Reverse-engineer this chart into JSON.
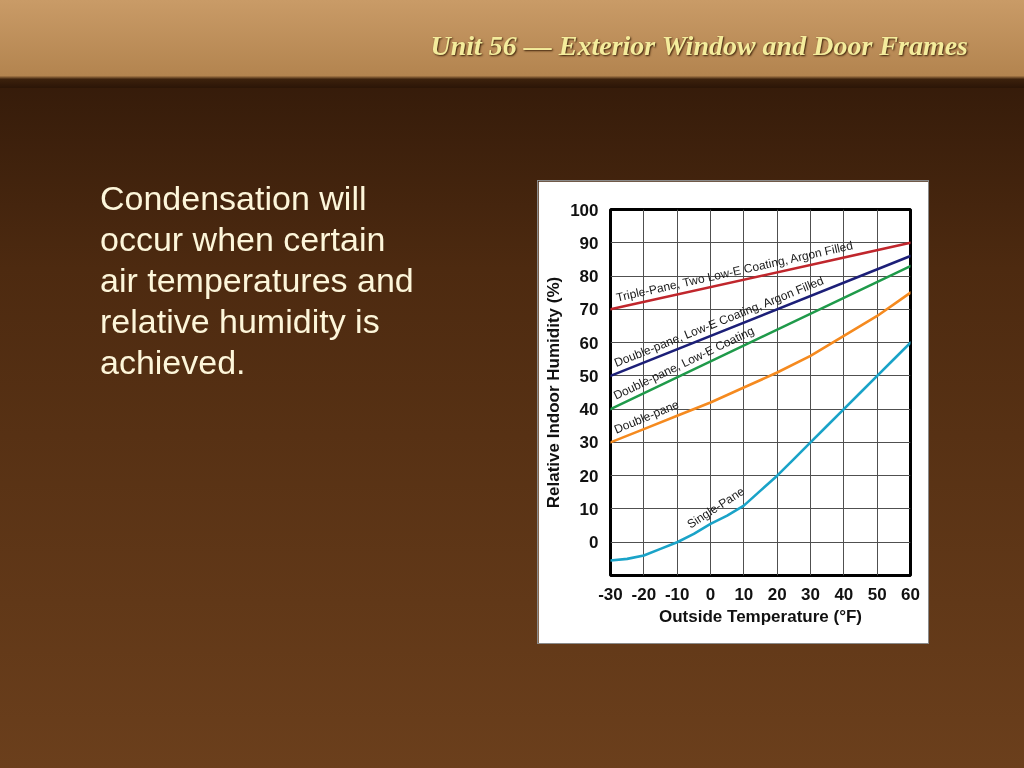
{
  "chart_data": {
    "type": "line",
    "title": "Unit 56 — Exterior Window and Door Frames",
    "annotations": [
      "Condensation will occur when certain air temperatures and relative humidity is achieved."
    ],
    "xlabel": "Outside Temperature (°F)",
    "ylabel": "Relative Indoor Humidity (%)",
    "xlim": [
      -30,
      60
    ],
    "ylim": [
      -10,
      100
    ],
    "xticks": [
      -30,
      -20,
      -10,
      0,
      10,
      20,
      30,
      40,
      50,
      60
    ],
    "yticks": [
      0,
      10,
      20,
      30,
      40,
      50,
      60,
      70,
      80,
      90,
      100
    ],
    "grid": true,
    "line_style": "solid",
    "series": [
      {
        "name": "Triple-Pane, Two Low-E Coating, Argon Filled",
        "color": "#c0262c",
        "x": [
          -30,
          60
        ],
        "values": [
          70,
          90
        ]
      },
      {
        "name": "Double-pane, Low-E Coating, Argon Filled",
        "color": "#1c1f78",
        "x": [
          -30,
          60
        ],
        "values": [
          50,
          86
        ]
      },
      {
        "name": "Double-pane, Low-E Coating",
        "color": "#1f9a4a",
        "x": [
          -30,
          60
        ],
        "values": [
          40,
          83
        ]
      },
      {
        "name": "Double-pane",
        "color": "#f58a1f",
        "x": [
          -30,
          -20,
          -10,
          0,
          10,
          20,
          30,
          40,
          50,
          60
        ],
        "values": [
          30,
          34,
          38,
          42,
          46.5,
          51,
          56,
          62,
          68,
          75
        ]
      },
      {
        "name": "Single-Pane",
        "color": "#1aa3c8",
        "x": [
          -30,
          -25,
          -20,
          -15,
          -10,
          -5,
          0,
          5,
          10,
          15,
          20,
          25,
          30,
          35,
          40,
          45,
          50,
          55,
          60
        ],
        "values": [
          -5.5,
          -5,
          -4,
          -2,
          0,
          2.5,
          5.5,
          8,
          11,
          15.5,
          20,
          25,
          30,
          35,
          40,
          45,
          50,
          55,
          60
        ]
      }
    ]
  }
}
